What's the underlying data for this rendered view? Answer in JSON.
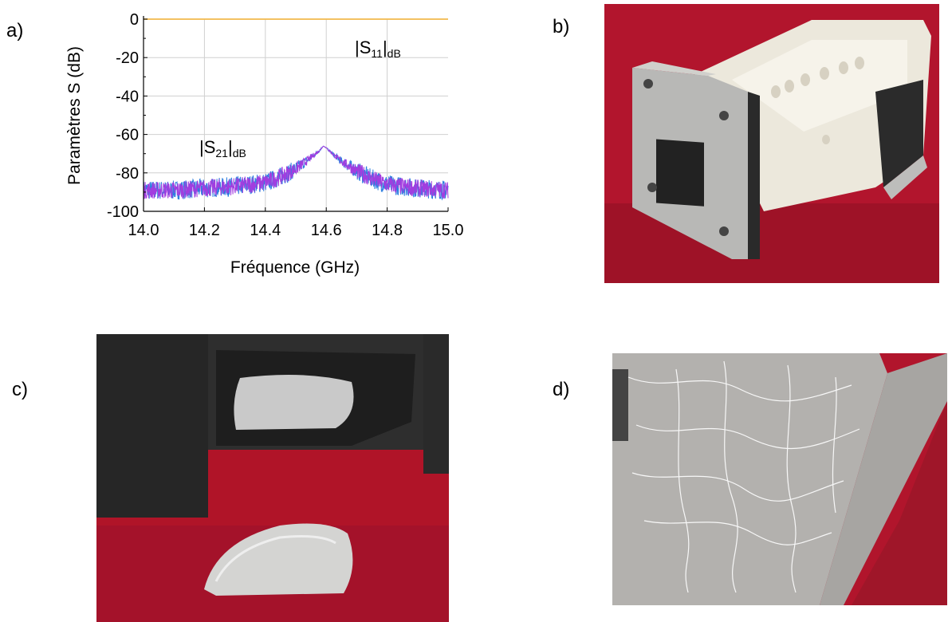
{
  "panels": {
    "a": "a)",
    "b": "b)",
    "c": "c)",
    "d": "d)"
  },
  "colors": {
    "s11": "#f2b84b",
    "s21_a": "#2e7fe0",
    "s21_b": "#a23ddf",
    "grid": "#d0d0d0",
    "felt": "#b2152d"
  },
  "chart_data": {
    "type": "line",
    "xlabel": "Fréquence (GHz)",
    "ylabel": "Paramètres S (dB)",
    "xlim": [
      14.0,
      15.0
    ],
    "ylim": [
      -100,
      0
    ],
    "x_ticks": [
      "14.0",
      "14.2",
      "14.4",
      "14.6",
      "14.8",
      "15.0"
    ],
    "y_ticks": [
      "0",
      "-20",
      "-40",
      "-60",
      "-80",
      "-100"
    ],
    "grid": true,
    "annotations": [
      {
        "base": "|S",
        "sub": "11",
        "end": "|",
        "sub2": "dB"
      },
      {
        "base": "|S",
        "sub": "21",
        "end": "|",
        "sub2": "dB"
      }
    ],
    "series": [
      {
        "x": [
          14.0,
          14.1,
          14.2,
          14.3,
          14.4,
          14.5,
          14.55,
          14.6,
          14.65,
          14.7,
          14.8,
          14.9,
          15.0
        ],
        "values": [
          0,
          0,
          0,
          0,
          0,
          0,
          0,
          0,
          0,
          0,
          0,
          0,
          0
        ]
      },
      {
        "x": [
          14.0,
          14.1,
          14.2,
          14.3,
          14.35,
          14.4,
          14.45,
          14.5,
          14.55,
          14.58,
          14.59,
          14.6,
          14.62,
          14.65,
          14.7,
          14.75,
          14.8,
          14.85,
          14.9,
          15.0
        ],
        "values": [
          -89,
          -89,
          -88,
          -87,
          -86,
          -85,
          -82,
          -78,
          -72,
          -68,
          -66,
          -67,
          -70,
          -74,
          -79,
          -83,
          -86,
          -87,
          -88,
          -89
        ]
      }
    ]
  }
}
